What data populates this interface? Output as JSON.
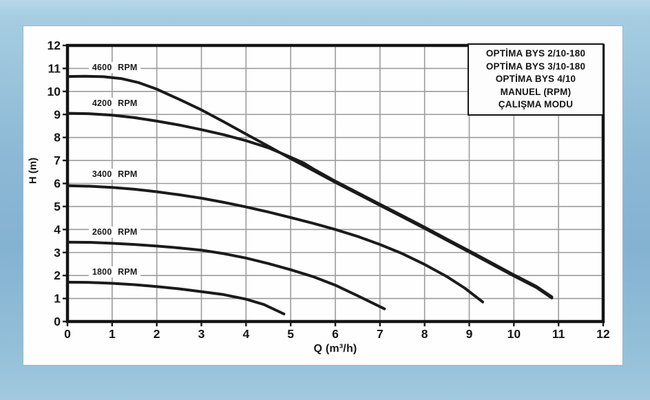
{
  "chart_data": {
    "type": "line",
    "title": "",
    "xlabel": "Q (m³/h)",
    "ylabel": "H (m)",
    "xlim": [
      0,
      12
    ],
    "ylim": [
      0,
      12
    ],
    "xticks": [
      0,
      1,
      2,
      3,
      4,
      5,
      6,
      7,
      8,
      9,
      10,
      11,
      12
    ],
    "yticks": [
      0,
      1,
      2,
      3,
      4,
      5,
      6,
      7,
      8,
      9,
      10,
      11,
      12
    ],
    "grid": true,
    "legend_position": "top-right",
    "legend_lines": [
      "OPTİMA BYS 2/10-180",
      "OPTİMA BYS 3/10-180",
      "OPTİMA BYS 4/10",
      "MANUEL (RPM)",
      "ÇALIŞMA MODU"
    ],
    "colors": {
      "curve": "#1b1b1b",
      "grid": "#9b9b9b",
      "axis": "#141414",
      "card_background": "#fefefe",
      "page_background": "#8db9d6"
    },
    "series": [
      {
        "name": "4600 RPM",
        "label_at": {
          "q": 1.06,
          "h": 11.05
        },
        "points": [
          [
            0,
            10.65
          ],
          [
            0.4,
            10.66
          ],
          [
            0.8,
            10.64
          ],
          [
            1.2,
            10.56
          ],
          [
            1.6,
            10.38
          ],
          [
            2,
            10.1
          ],
          [
            2.5,
            9.66
          ],
          [
            3,
            9.2
          ],
          [
            3.5,
            8.68
          ],
          [
            4,
            8.15
          ],
          [
            4.5,
            7.62
          ],
          [
            5,
            7.08
          ],
          [
            5.5,
            6.57
          ],
          [
            6,
            6.05
          ],
          [
            6.5,
            5.55
          ],
          [
            7,
            5.05
          ],
          [
            7.5,
            4.55
          ],
          [
            8,
            4.05
          ],
          [
            8.5,
            3.53
          ],
          [
            9,
            3.02
          ],
          [
            9.5,
            2.5
          ],
          [
            10,
            1.98
          ],
          [
            10.5,
            1.48
          ],
          [
            10.85,
            1.02
          ]
        ]
      },
      {
        "name": "4200 RPM",
        "label_at": {
          "q": 1.06,
          "h": 9.5
        },
        "points": [
          [
            0,
            9.05
          ],
          [
            0.5,
            9.03
          ],
          [
            1,
            8.97
          ],
          [
            1.5,
            8.86
          ],
          [
            2,
            8.71
          ],
          [
            2.5,
            8.54
          ],
          [
            3,
            8.34
          ],
          [
            3.5,
            8.12
          ],
          [
            4,
            7.86
          ],
          [
            4.5,
            7.55
          ],
          [
            5,
            7.14
          ],
          [
            5.3,
            6.88
          ],
          [
            5.5,
            6.64
          ],
          [
            6,
            6.1
          ],
          [
            6.5,
            5.6
          ],
          [
            7,
            5.1
          ],
          [
            7.5,
            4.6
          ],
          [
            8,
            4.1
          ],
          [
            8.5,
            3.58
          ],
          [
            9,
            3.07
          ],
          [
            9.5,
            2.55
          ],
          [
            10,
            2.03
          ],
          [
            10.5,
            1.53
          ],
          [
            10.85,
            1.07
          ]
        ]
      },
      {
        "name": "3400 RPM",
        "label_at": {
          "q": 1.06,
          "h": 6.4
        },
        "points": [
          [
            0,
            5.9
          ],
          [
            0.5,
            5.88
          ],
          [
            1,
            5.83
          ],
          [
            1.5,
            5.75
          ],
          [
            2,
            5.64
          ],
          [
            2.5,
            5.51
          ],
          [
            3,
            5.36
          ],
          [
            3.5,
            5.18
          ],
          [
            4,
            4.98
          ],
          [
            4.5,
            4.76
          ],
          [
            5,
            4.52
          ],
          [
            5.5,
            4.27
          ],
          [
            6,
            4.0
          ],
          [
            6.5,
            3.7
          ],
          [
            7,
            3.35
          ],
          [
            7.5,
            2.95
          ],
          [
            8,
            2.48
          ],
          [
            8.5,
            1.95
          ],
          [
            8.9,
            1.45
          ],
          [
            9.3,
            0.85
          ]
        ]
      },
      {
        "name": "2600 RPM",
        "label_at": {
          "q": 1.06,
          "h": 3.89
        },
        "points": [
          [
            0,
            3.45
          ],
          [
            0.5,
            3.44
          ],
          [
            1,
            3.4
          ],
          [
            1.5,
            3.35
          ],
          [
            2,
            3.28
          ],
          [
            2.5,
            3.2
          ],
          [
            3,
            3.1
          ],
          [
            3.5,
            2.95
          ],
          [
            4,
            2.76
          ],
          [
            4.5,
            2.52
          ],
          [
            5,
            2.25
          ],
          [
            5.5,
            1.95
          ],
          [
            6,
            1.58
          ],
          [
            6.5,
            1.12
          ],
          [
            7.1,
            0.55
          ]
        ]
      },
      {
        "name": "1800 RPM",
        "label_at": {
          "q": 1.06,
          "h": 2.15
        },
        "points": [
          [
            0,
            1.71
          ],
          [
            0.5,
            1.7
          ],
          [
            1,
            1.66
          ],
          [
            1.5,
            1.6
          ],
          [
            2,
            1.52
          ],
          [
            2.5,
            1.42
          ],
          [
            3,
            1.3
          ],
          [
            3.5,
            1.17
          ],
          [
            4,
            0.97
          ],
          [
            4.4,
            0.74
          ],
          [
            4.85,
            0.33
          ]
        ]
      }
    ]
  }
}
